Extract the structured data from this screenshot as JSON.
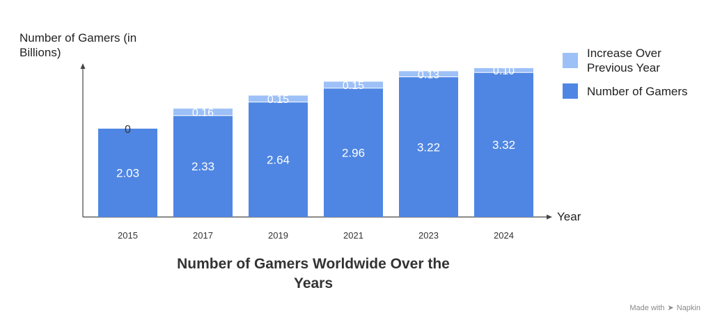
{
  "chart_data": {
    "type": "bar",
    "stacked": true,
    "title": "Number of Gamers Worldwide Over the Years",
    "xlabel": "Year",
    "ylabel": "Number of Gamers (in Billions)",
    "categories": [
      "2015",
      "2017",
      "2019",
      "2021",
      "2023",
      "2024"
    ],
    "series": [
      {
        "name": "Number of Gamers",
        "values": [
          2.03,
          2.33,
          2.64,
          2.96,
          3.22,
          3.32
        ],
        "color": "#4F86E3"
      },
      {
        "name": "Increase Over Previous Year",
        "values": [
          0,
          0.16,
          0.15,
          0.15,
          0.13,
          0.1
        ],
        "color": "#9DC0F7"
      }
    ],
    "value_labels": {
      "base": [
        "2.03",
        "2.33",
        "2.64",
        "2.96",
        "3.22",
        "3.32"
      ],
      "increase": [
        "0",
        "0.16",
        "0.15",
        "0.15",
        "0.13",
        "0.10"
      ]
    },
    "ylim": [
      0,
      3.42
    ],
    "grid": false,
    "legend_position": "right"
  },
  "labels": {
    "ylabel": "Number of Gamers (in Billions)",
    "xlabel": "Year",
    "title": "Number of Gamers Worldwide Over the Years"
  },
  "legend": [
    {
      "label": "Increase Over Previous Year",
      "color": "#9DC0F7"
    },
    {
      "label": "Number of Gamers",
      "color": "#4F86E3"
    }
  ],
  "watermark": {
    "text": "Made with",
    "brand": "Napkin",
    "icon": "napkin-logo-icon"
  }
}
